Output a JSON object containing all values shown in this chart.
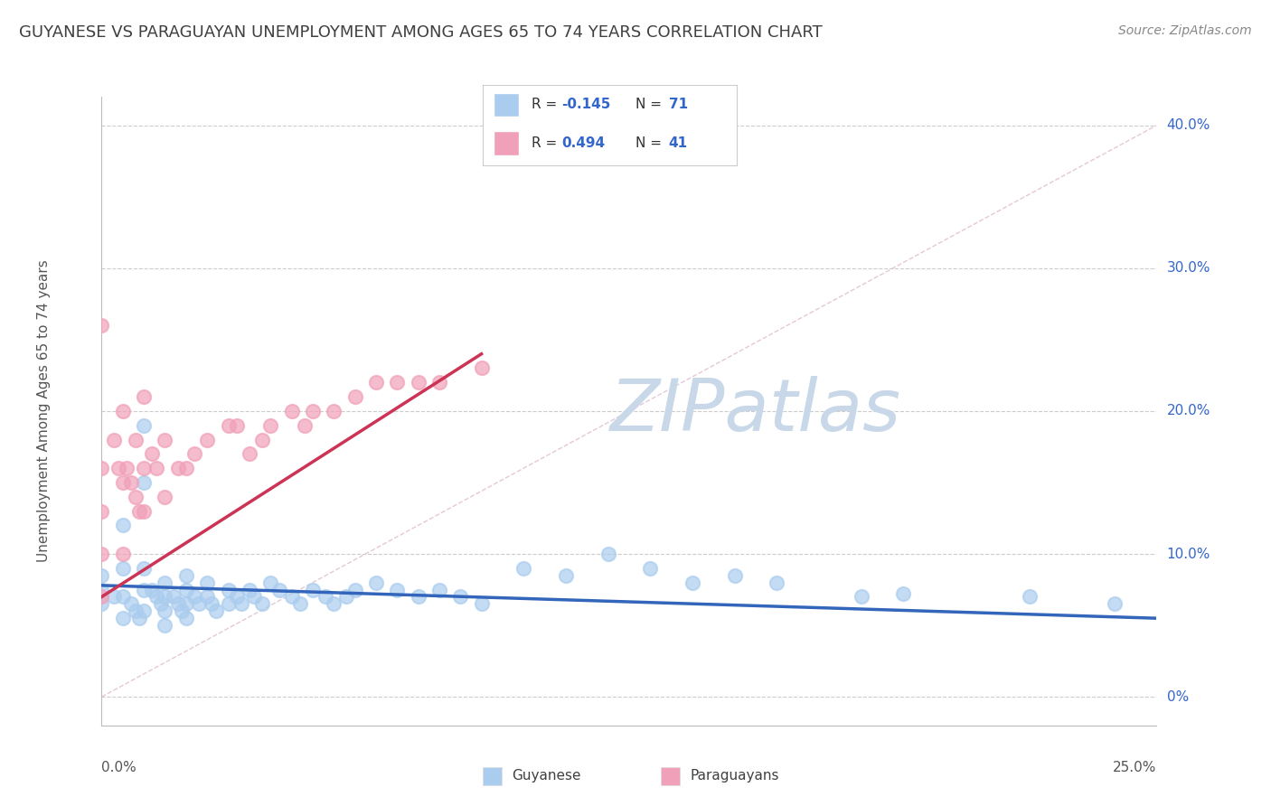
{
  "title": "GUYANESE VS PARAGUAYAN UNEMPLOYMENT AMONG AGES 65 TO 74 YEARS CORRELATION CHART",
  "source": "Source: ZipAtlas.com",
  "ylabel": "Unemployment Among Ages 65 to 74 years",
  "xlim": [
    0.0,
    0.25
  ],
  "ylim": [
    -0.02,
    0.42
  ],
  "background_color": "#ffffff",
  "grid_color": "#cccccc",
  "blue_scatter_color": "#aaccee",
  "pink_scatter_color": "#f0a0b8",
  "blue_line_color": "#3366bb",
  "pink_line_color": "#cc3355",
  "diag_line_color": "#ddbbcc",
  "watermark_color": "#c8d8e8",
  "title_color": "#404040",
  "source_color": "#888888",
  "legend_R_color": "#3366cc",
  "axis_label_color": "#3366cc",
  "guyanese_scatter_x": [
    0.0,
    0.0,
    0.0,
    0.003,
    0.005,
    0.005,
    0.005,
    0.005,
    0.007,
    0.008,
    0.009,
    0.01,
    0.01,
    0.01,
    0.01,
    0.01,
    0.012,
    0.013,
    0.014,
    0.015,
    0.015,
    0.015,
    0.015,
    0.017,
    0.018,
    0.019,
    0.02,
    0.02,
    0.02,
    0.02,
    0.022,
    0.023,
    0.025,
    0.025,
    0.026,
    0.027,
    0.03,
    0.03,
    0.032,
    0.033,
    0.035,
    0.036,
    0.038,
    0.04,
    0.042,
    0.045,
    0.047,
    0.05,
    0.053,
    0.055,
    0.058,
    0.06,
    0.065,
    0.07,
    0.075,
    0.08,
    0.085,
    0.09,
    0.1,
    0.11,
    0.12,
    0.13,
    0.14,
    0.15,
    0.16,
    0.18,
    0.19,
    0.22,
    0.24
  ],
  "guyanese_scatter_y": [
    0.085,
    0.075,
    0.065,
    0.07,
    0.12,
    0.09,
    0.07,
    0.055,
    0.065,
    0.06,
    0.055,
    0.19,
    0.15,
    0.09,
    0.075,
    0.06,
    0.075,
    0.07,
    0.065,
    0.08,
    0.07,
    0.06,
    0.05,
    0.07,
    0.065,
    0.06,
    0.085,
    0.075,
    0.065,
    0.055,
    0.07,
    0.065,
    0.08,
    0.07,
    0.065,
    0.06,
    0.075,
    0.065,
    0.07,
    0.065,
    0.075,
    0.07,
    0.065,
    0.08,
    0.075,
    0.07,
    0.065,
    0.075,
    0.07,
    0.065,
    0.07,
    0.075,
    0.08,
    0.075,
    0.07,
    0.075,
    0.07,
    0.065,
    0.09,
    0.085,
    0.1,
    0.09,
    0.08,
    0.085,
    0.08,
    0.07,
    0.072,
    0.07,
    0.065
  ],
  "paraguayan_scatter_x": [
    0.0,
    0.0,
    0.0,
    0.0,
    0.0,
    0.003,
    0.004,
    0.005,
    0.005,
    0.005,
    0.006,
    0.007,
    0.008,
    0.008,
    0.009,
    0.01,
    0.01,
    0.01,
    0.012,
    0.013,
    0.015,
    0.015,
    0.018,
    0.02,
    0.022,
    0.025,
    0.03,
    0.032,
    0.035,
    0.038,
    0.04,
    0.045,
    0.048,
    0.05,
    0.055,
    0.06,
    0.065,
    0.07,
    0.075,
    0.08,
    0.09
  ],
  "paraguayan_scatter_y": [
    0.26,
    0.16,
    0.13,
    0.1,
    0.07,
    0.18,
    0.16,
    0.2,
    0.15,
    0.1,
    0.16,
    0.15,
    0.18,
    0.14,
    0.13,
    0.21,
    0.16,
    0.13,
    0.17,
    0.16,
    0.18,
    0.14,
    0.16,
    0.16,
    0.17,
    0.18,
    0.19,
    0.19,
    0.17,
    0.18,
    0.19,
    0.2,
    0.19,
    0.2,
    0.2,
    0.21,
    0.22,
    0.22,
    0.22,
    0.22,
    0.23
  ],
  "blue_trend_x0": 0.0,
  "blue_trend_x1": 0.25,
  "blue_trend_y0": 0.078,
  "blue_trend_y1": 0.055,
  "pink_trend_x0": 0.0,
  "pink_trend_x1": 0.09,
  "pink_trend_y0": 0.07,
  "pink_trend_y1": 0.24
}
